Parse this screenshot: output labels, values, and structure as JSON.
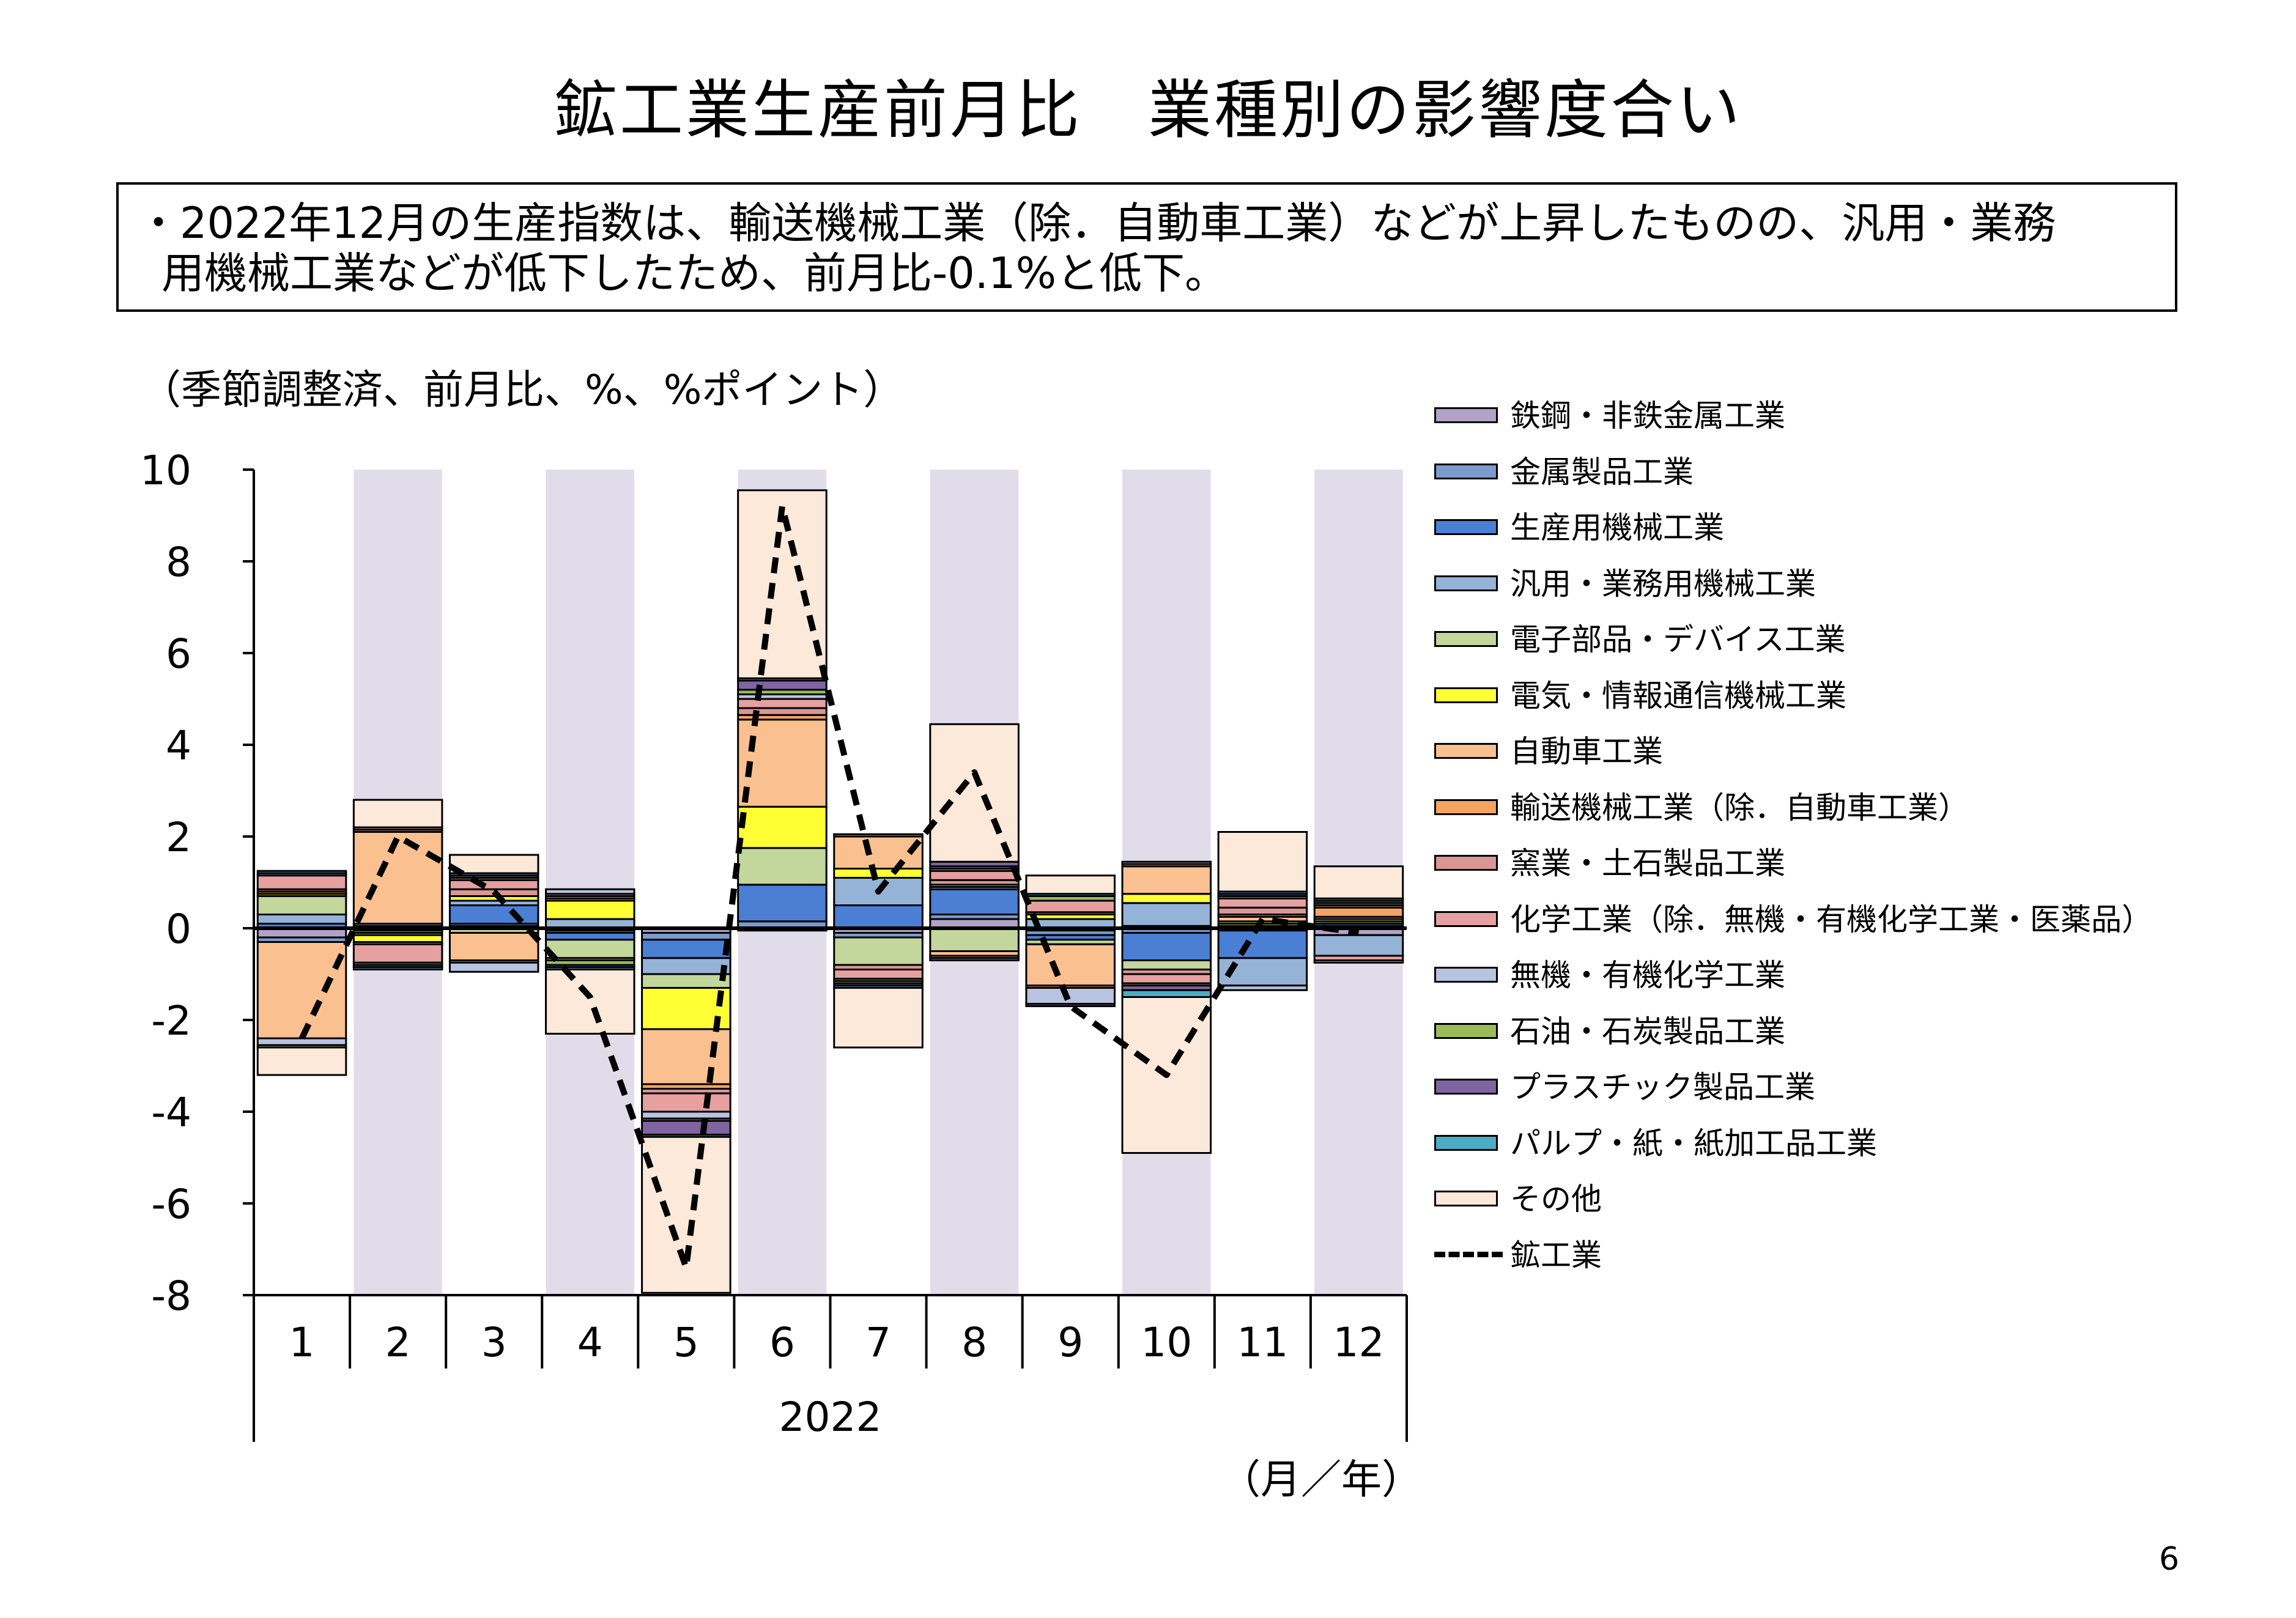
{
  "title": "鉱工業生産前月比　業種別の影響度合い",
  "summary": {
    "line1": "・2022年12月の生産指数は、輸送機械工業（除．自動車工業）などが上昇したものの、汎用・業務",
    "line2": "用機械工業などが低下したため、前月比-0.1%と低下。"
  },
  "unit_label": "（季節調整済、前月比、%、%ポイント）",
  "x_unit_label": "（月／年）",
  "page_number": "6",
  "chart_data": {
    "type": "bar",
    "stacked": true,
    "categories": [
      "1",
      "2",
      "3",
      "4",
      "5",
      "6",
      "7",
      "8",
      "9",
      "10",
      "11",
      "12"
    ],
    "year_label": "2022",
    "ylim": [
      -8,
      10
    ],
    "yticks": [
      "10",
      "8",
      "6",
      "4",
      "2",
      "0",
      "-2",
      "-4",
      "-6",
      "-8"
    ],
    "grid": false,
    "legend_position": "right",
    "series": [
      {
        "name": "鉄鋼・非鉄金属工業",
        "color": "#b3a2c7",
        "values": [
          -0.2,
          0.05,
          0.05,
          -0.05,
          -0.1,
          -0.05,
          -0.1,
          0.2,
          -0.05,
          0.05,
          -0.05,
          -0.15
        ]
      },
      {
        "name": "金属製品工業",
        "color": "#7b9bcc",
        "values": [
          -0.1,
          0.05,
          0.05,
          -0.05,
          -0.15,
          0.15,
          -0.1,
          0.1,
          -0.1,
          -0.1,
          0.05,
          0.05
        ]
      },
      {
        "name": "生産用機械工業",
        "color": "#4a7fd4",
        "values": [
          0.1,
          -0.05,
          0.4,
          -0.15,
          -0.4,
          0.8,
          0.5,
          0.55,
          -0.1,
          -0.6,
          -0.6,
          0.05
        ]
      },
      {
        "name": "汎用・業務用機械工業",
        "color": "#95b3d7",
        "values": [
          0.2,
          -0.05,
          0.1,
          0.2,
          -0.35,
          0.0,
          0.6,
          0.05,
          0.2,
          0.5,
          -0.6,
          -0.45
        ]
      },
      {
        "name": "電子部品・デバイス工業",
        "color": "#c3d69b",
        "values": [
          0.4,
          -0.05,
          -0.1,
          -0.4,
          -0.3,
          0.8,
          -0.6,
          -0.5,
          -0.1,
          -0.2,
          0.05,
          0.05
        ]
      },
      {
        "name": "電気・情報通信機械工業",
        "color": "#ffff33",
        "values": [
          0.05,
          -0.15,
          0.1,
          0.4,
          -0.9,
          0.9,
          0.2,
          0.05,
          0.1,
          0.2,
          0.05,
          0.05
        ]
      },
      {
        "name": "自動車工業",
        "color": "#fac090",
        "values": [
          -2.1,
          2.0,
          -0.6,
          0.05,
          -1.2,
          1.9,
          0.7,
          -0.1,
          -0.9,
          0.6,
          0.1,
          0.05
        ]
      },
      {
        "name": "輸送機械工業（除．自動車工業）",
        "color": "#f4a460",
        "values": [
          0.05,
          0.05,
          -0.05,
          0.05,
          -0.1,
          0.1,
          0.05,
          -0.05,
          -0.05,
          0.05,
          0.05,
          0.2
        ]
      },
      {
        "name": "窯業・土石製品工業",
        "color": "#d99694",
        "values": [
          0.05,
          -0.05,
          0.15,
          0.05,
          -0.1,
          0.15,
          -0.1,
          0.1,
          0.05,
          -0.1,
          0.15,
          0.05
        ]
      },
      {
        "name": "化学工業（除．無機・有機化学工業・医薬品）",
        "color": "#e6a0a0",
        "values": [
          0.3,
          -0.4,
          0.2,
          -0.05,
          -0.4,
          0.2,
          -0.2,
          0.2,
          0.25,
          -0.2,
          0.2,
          -0.1
        ]
      },
      {
        "name": "無機・有機化学工業",
        "color": "#b7c3e0",
        "values": [
          -0.15,
          0.05,
          -0.2,
          0.1,
          -0.15,
          0.1,
          -0.05,
          0.05,
          -0.35,
          0.05,
          -0.1,
          -0.05
        ]
      },
      {
        "name": "石油・石炭製品工業",
        "color": "#9bbb59",
        "values": [
          -0.05,
          -0.05,
          0.05,
          -0.1,
          -0.05,
          0.1,
          -0.05,
          0.05,
          0.1,
          -0.05,
          0.05,
          0.05
        ]
      },
      {
        "name": "プラスチック製品工業",
        "color": "#8064a2",
        "values": [
          0.05,
          -0.05,
          0.05,
          -0.05,
          -0.3,
          0.2,
          -0.05,
          0.1,
          -0.05,
          -0.1,
          0.05,
          0.05
        ]
      },
      {
        "name": "パルプ・紙・紙加工品工業",
        "color": "#4bacc6",
        "values": [
          0.05,
          -0.05,
          0.05,
          -0.05,
          -0.05,
          0.05,
          -0.05,
          -0.05,
          0.05,
          -0.15,
          0.05,
          0.05
        ]
      },
      {
        "name": "その他",
        "color": "#fde9d9",
        "values": [
          -0.6,
          0.6,
          0.4,
          -1.4,
          -3.4,
          4.1,
          -1.3,
          3.0,
          0.4,
          -3.4,
          1.3,
          0.7
        ]
      }
    ],
    "line": {
      "name": "鉱工業",
      "values": [
        -2.4,
        2.0,
        0.8,
        -1.5,
        -7.4,
        9.2,
        0.8,
        3.4,
        -1.7,
        -3.2,
        0.2,
        -0.1
      ]
    }
  }
}
